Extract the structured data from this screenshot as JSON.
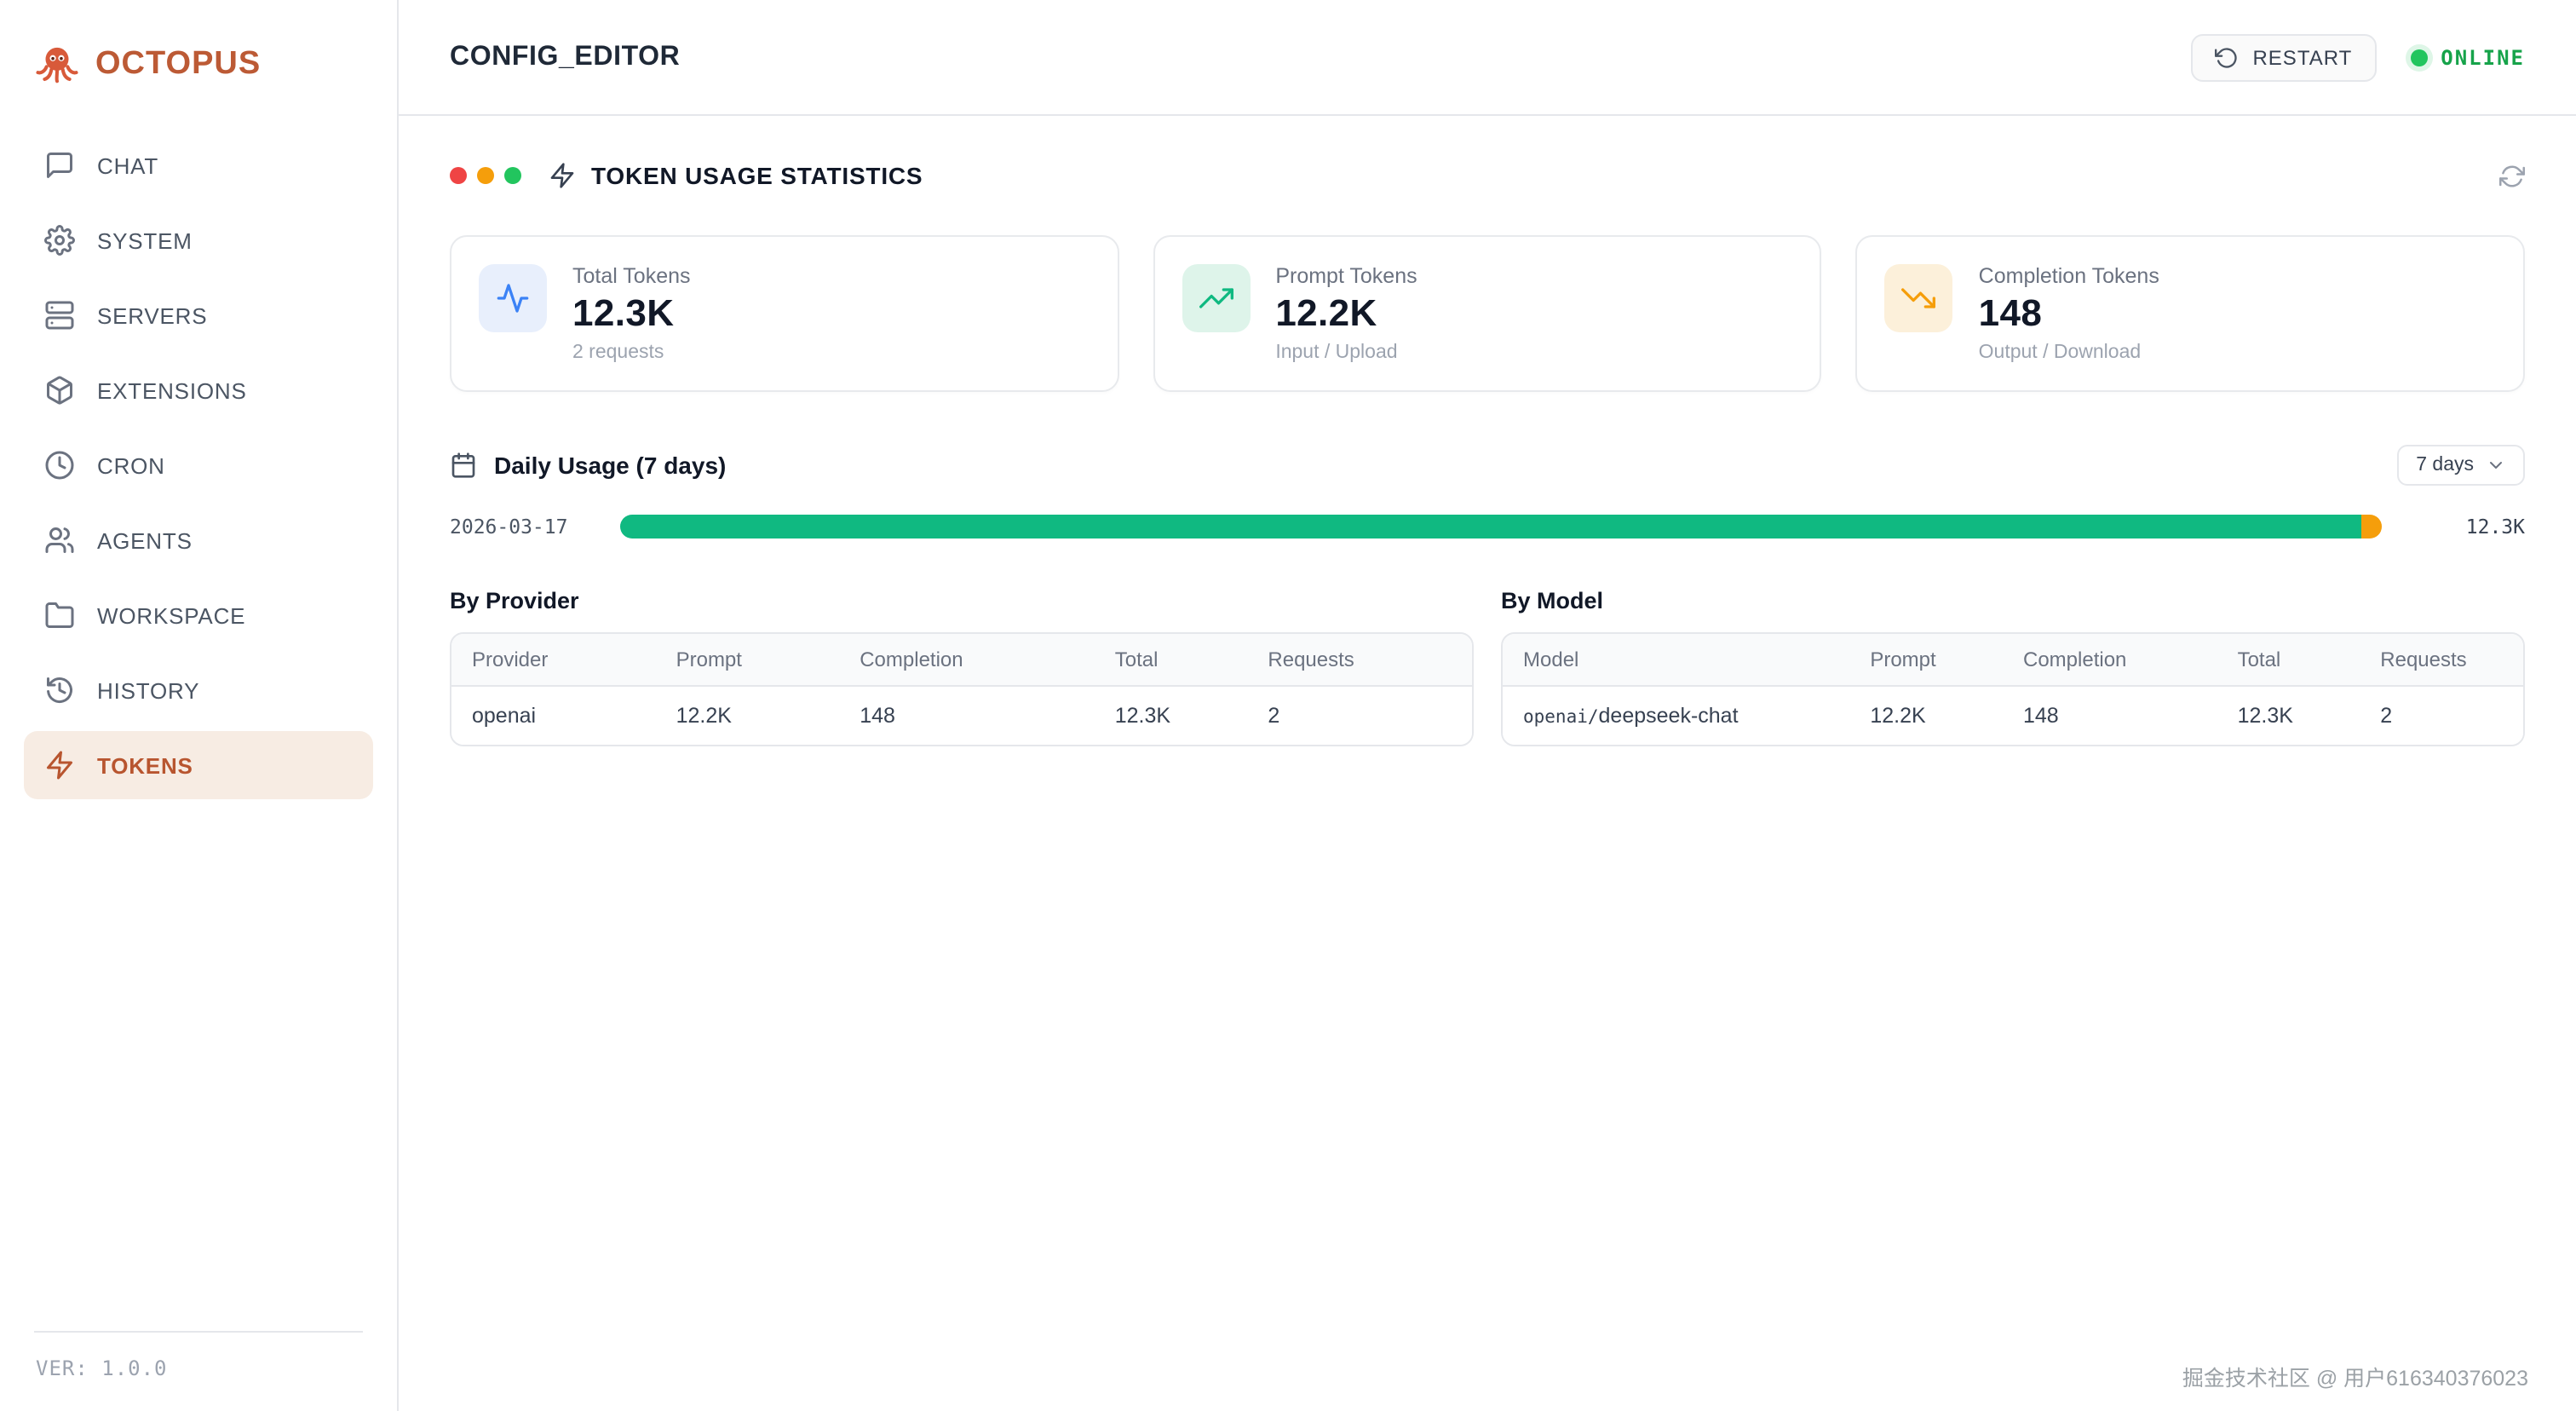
{
  "colors": {
    "accent": "#bc5a35",
    "accent_active_bg": "#f7ece3",
    "status_green": "#16a34a",
    "bar_prompt_green": "#10b981",
    "bar_completion_orange": "#f59e0b",
    "stat_icon_blue": "#3b82f6",
    "stat_icon_green": "#10b981",
    "stat_icon_amber": "#f59e0b",
    "traffic_dots": [
      "#ef4444",
      "#f59e0b",
      "#22c55e"
    ]
  },
  "sidebar": {
    "logo_title": "OCTOPUS",
    "items": [
      {
        "label": "CHAT"
      },
      {
        "label": "SYSTEM"
      },
      {
        "label": "SERVERS"
      },
      {
        "label": "EXTENSIONS"
      },
      {
        "label": "CRON"
      },
      {
        "label": "AGENTS"
      },
      {
        "label": "WORKSPACE"
      },
      {
        "label": "HISTORY"
      },
      {
        "label": "TOKENS"
      }
    ],
    "active_item": "TOKENS",
    "version": "VER: 1.0.0"
  },
  "header": {
    "title": "CONFIG_EDITOR",
    "restart_label": "RESTART",
    "status_label": "ONLINE"
  },
  "panel": {
    "title": "TOKEN USAGE STATISTICS"
  },
  "stats": [
    {
      "label": "Total Tokens",
      "value": "12.3K",
      "sub": "2 requests"
    },
    {
      "label": "Prompt Tokens",
      "value": "12.2K",
      "sub": "Input / Upload"
    },
    {
      "label": "Completion Tokens",
      "value": "148",
      "sub": "Output / Download"
    }
  ],
  "daily": {
    "title": "Daily Usage (7 days)",
    "range_label": "7 days",
    "rows": [
      {
        "date": "2026-03-17",
        "total": "12.3K",
        "prompt_pct": 98.8,
        "completion_pct": 1.2
      }
    ]
  },
  "by_provider": {
    "title": "By Provider",
    "headers": [
      "Provider",
      "Prompt",
      "Completion",
      "Total",
      "Requests"
    ],
    "rows": [
      {
        "provider": "openai",
        "prompt": "12.2K",
        "completion": "148",
        "total": "12.3K",
        "requests": "2"
      }
    ]
  },
  "by_model": {
    "title": "By Model",
    "headers": [
      "Model",
      "Prompt",
      "Completion",
      "Total",
      "Requests"
    ],
    "rows": [
      {
        "model_prefix": "openai/",
        "model": "deepseek-chat",
        "prompt": "12.2K",
        "completion": "148",
        "total": "12.3K",
        "requests": "2"
      }
    ]
  },
  "watermark": "掘金技术社区 @ 用户616340376023"
}
